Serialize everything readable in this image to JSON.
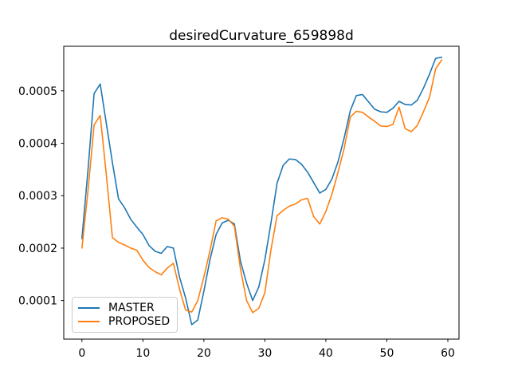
{
  "chart_data": {
    "type": "line",
    "title": "desiredCurvature_659898d",
    "xlabel": "",
    "ylabel": "",
    "grid": false,
    "background": "#ffffff",
    "xlim": [
      -2.98,
      61.83
    ],
    "ylim": [
      2.64e-05,
      0.000585
    ],
    "x_ticks": [
      0,
      10,
      20,
      30,
      40,
      50,
      60
    ],
    "x_tick_labels": [
      "0",
      "10",
      "20",
      "30",
      "40",
      "50",
      "60"
    ],
    "y_ticks": [
      0.0001,
      0.0002,
      0.0003,
      0.0004,
      0.0005
    ],
    "y_tick_labels": [
      "0.0001",
      "0.0002",
      "0.0003",
      "0.0004",
      "0.0005"
    ],
    "legend": {
      "position": "lower left",
      "items": [
        {
          "label": "MASTER",
          "color": "#1f77b4"
        },
        {
          "label": "PROPOSED",
          "color": "#ff7f0e"
        }
      ]
    },
    "x": [
      0,
      1,
      2,
      3,
      4,
      5,
      6,
      7,
      8,
      9,
      10,
      11,
      12,
      13,
      14,
      15,
      16,
      17,
      18,
      19,
      20,
      21,
      22,
      23,
      24,
      25,
      26,
      27,
      28,
      29,
      30,
      31,
      32,
      33,
      34,
      35,
      36,
      37,
      38,
      39,
      40,
      41,
      42,
      43,
      44,
      45,
      46,
      47,
      48,
      49,
      50,
      51,
      52,
      53,
      54,
      55,
      56,
      57,
      58,
      59
    ],
    "series": [
      {
        "name": "MASTER",
        "color": "#1f77b4",
        "values": [
          0.000218,
          0.00035,
          0.000495,
          0.000513,
          0.000438,
          0.000363,
          0.000294,
          0.000277,
          0.000255,
          0.00024,
          0.000226,
          0.000205,
          0.000194,
          0.00019,
          0.000203,
          0.0002,
          0.000145,
          0.000105,
          5.4e-05,
          6.3e-05,
          0.000118,
          0.000178,
          0.000226,
          0.000248,
          0.000253,
          0.000246,
          0.000175,
          0.000133,
          0.0001,
          0.000126,
          0.000178,
          0.000248,
          0.000324,
          0.000358,
          0.00037,
          0.000369,
          0.00036,
          0.000345,
          0.000325,
          0.000305,
          0.000312,
          0.000332,
          0.000365,
          0.00041,
          0.000462,
          0.000491,
          0.000493,
          0.000479,
          0.000465,
          0.00046,
          0.000459,
          0.000467,
          0.00048,
          0.000474,
          0.000473,
          0.000482,
          0.000505,
          0.000532,
          0.000562,
          0.000564
        ]
      },
      {
        "name": "PROPOSED",
        "color": "#ff7f0e",
        "values": [
          0.0002,
          0.00031,
          0.000435,
          0.000453,
          0.00034,
          0.00022,
          0.000211,
          0.000206,
          0.0002,
          0.000196,
          0.000177,
          0.000163,
          0.000155,
          0.000149,
          0.000162,
          0.000171,
          0.000122,
          8.2e-05,
          7.8e-05,
          0.0001,
          0.000145,
          0.000195,
          0.000252,
          0.000258,
          0.000255,
          0.000242,
          0.00016,
          0.0001,
          7.7e-05,
          8.5e-05,
          0.000115,
          0.000197,
          0.000262,
          0.000272,
          0.00028,
          0.000284,
          0.000292,
          0.000295,
          0.00026,
          0.000246,
          0.00027,
          0.000303,
          0.000345,
          0.00039,
          0.00045,
          0.000461,
          0.000459,
          0.00045,
          0.000442,
          0.000433,
          0.000432,
          0.000436,
          0.000469,
          0.000428,
          0.000422,
          0.000434,
          0.00046,
          0.000488,
          0.000542,
          0.000559
        ]
      }
    ]
  }
}
